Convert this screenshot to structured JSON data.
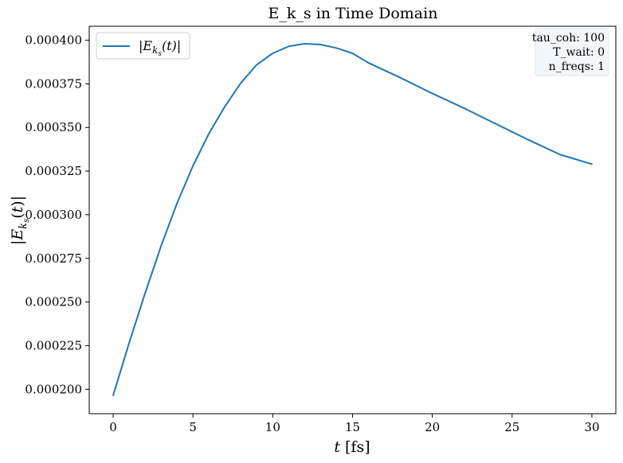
{
  "chart_data": {
    "type": "line",
    "title": "E_k_s in Time Domain",
    "xlabel": "t [fs]",
    "ylabel": "|E_k_s(t)|",
    "xlim": [
      -1.5,
      31.5
    ],
    "ylim": [
      0.000186,
      0.000408
    ],
    "xticks": [
      0,
      5,
      10,
      15,
      20,
      25,
      30
    ],
    "yticks": [
      0.0002,
      0.000225,
      0.00025,
      0.000275,
      0.0003,
      0.000325,
      0.00035,
      0.000375,
      0.0004
    ],
    "ytick_labels": [
      "0.000200",
      "0.000225",
      "0.000250",
      "0.000275",
      "0.000300",
      "0.000325",
      "0.000350",
      "0.000375",
      "0.000400"
    ],
    "grid": false,
    "legend_position": "top-left",
    "series": [
      {
        "name": "|E_k_s(t)|",
        "color": "#1f77b4",
        "x": [
          0,
          1,
          2,
          3,
          4,
          5,
          6,
          7,
          8,
          9,
          10,
          11,
          12,
          13,
          14,
          15,
          16,
          18,
          20,
          22,
          24,
          26,
          28,
          30
        ],
        "y": [
          0.0001965,
          0.0002265,
          0.000255,
          0.000282,
          0.0003065,
          0.000328,
          0.0003465,
          0.000362,
          0.0003755,
          0.000386,
          0.0003925,
          0.0003965,
          0.000398,
          0.0003975,
          0.0003955,
          0.0003925,
          0.000387,
          0.0003785,
          0.0003695,
          0.000361,
          0.000352,
          0.000343,
          0.0003345,
          0.000329
        ]
      }
    ],
    "info_box": {
      "position": "top-right",
      "lines": [
        "tau_coh: 100",
        "T_wait: 0",
        "n_freqs: 1"
      ]
    }
  }
}
